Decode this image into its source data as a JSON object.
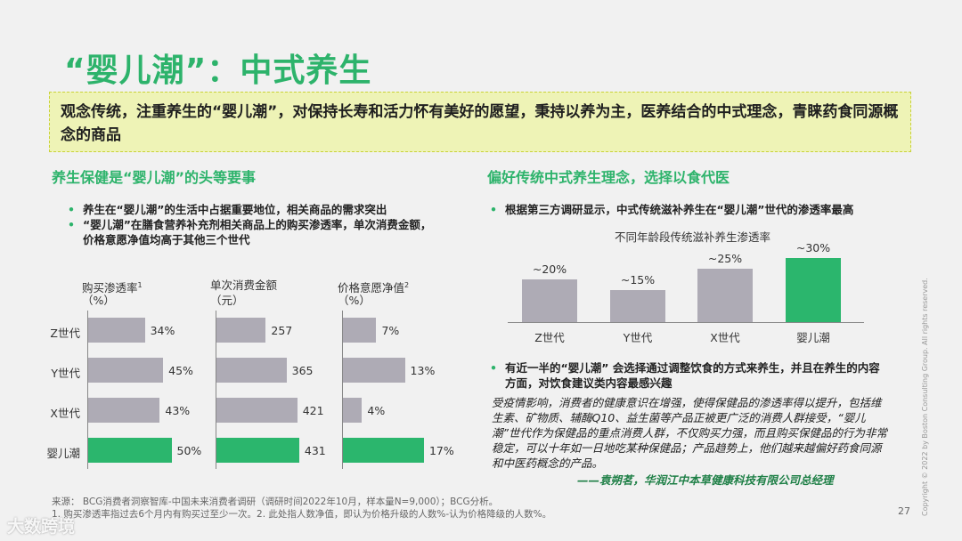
{
  "title": "“婴儿潮”：中式养生",
  "summary": "观念传统，注重养生的“婴儿潮”，对保持长寿和活力怀有美好的愿望，秉持以养为主，医养结合的中式理念，青睐药食同源概念的商品",
  "left": {
    "heading": "养生保健是“婴儿潮”的头等要事",
    "bullets": [
      "养生在“婴儿潮”的生活中占据重要地位，相关商品的需求突出",
      "“婴儿潮”在膳食营养补充剂相关商品上的购买渗透率，单次消费金额，价格意愿净值均高于其他三个世代"
    ]
  },
  "right": {
    "heading": "偏好传统中式养生理念，选择以食代医",
    "bullet1": "根据第三方调研显示，中式传统滋补养生在“婴儿潮”世代的渗透率最高",
    "bullet2": "有近一半的“婴儿潮” 会选择通过调整饮食的方式来养生，并且在养生的内容方面，对饮食建议类内容最感兴趣",
    "quote": "受疫情影响，消费者的健康意识在增强，使得保健品的渗透率得以提升，包括维生素、矿物质、辅酶Q10、益生菌等产品正被更广泛的消费人群接受，“婴儿潮”世代作为保健品的重点消费人群，不仅购买力强，而且购买保健品的行为非常稳定，可以十年如一日地吃某种保健品；产品趋势上，他们越来越偏好药食同源和中医药概念的产品。",
    "quote_author": "——袁朔茗，华润江中本草健康科技有限公司总经理"
  },
  "footnote": {
    "source": "来源： BCG消费者洞察智库-中国未来消费者调研（调研时间2022年10月，样本量N=9,000）；BCG分析。",
    "notes": "1. 购买渗透率指过去6个月内有购买过至少一次。2. 此处指人数净值，即认为价格升级的人数%-认为价格降级的人数%。"
  },
  "page_number": "27",
  "copyright": "Copyright © 2022 by Boston Consulting Group. All rights reserved.",
  "watermark": "大数跨境",
  "colors": {
    "accent": "#2db36b",
    "bar_gray": "#aeabb5",
    "highlight": "#2bb66d",
    "summary_bg": "#eef3b6"
  },
  "chart_data": [
    {
      "type": "bar",
      "orientation": "horizontal",
      "title": "购买渗透率",
      "title_sup": "1",
      "unit": "（%）",
      "categories": [
        "Z世代",
        "Y世代",
        "X世代",
        "婴儿潮"
      ],
      "values": [
        34,
        45,
        43,
        50
      ],
      "labels": [
        "34%",
        "45%",
        "43%",
        "50%"
      ],
      "highlight": "婴儿潮"
    },
    {
      "type": "bar",
      "orientation": "horizontal",
      "title": "单次消费金额",
      "title_sup": "",
      "unit": "（元）",
      "categories": [
        "Z世代",
        "Y世代",
        "X世代",
        "婴儿潮"
      ],
      "values": [
        257,
        365,
        421,
        431
      ],
      "labels": [
        "257",
        "365",
        "421",
        "431"
      ],
      "highlight": "婴儿潮"
    },
    {
      "type": "bar",
      "orientation": "horizontal",
      "title": "价格意愿净值",
      "title_sup": "2",
      "unit": "（%）",
      "categories": [
        "Z世代",
        "Y世代",
        "X世代",
        "婴儿潮"
      ],
      "values": [
        7,
        13,
        4,
        17
      ],
      "labels": [
        "7%",
        "13%",
        "4%",
        "17%"
      ],
      "highlight": "婴儿潮"
    },
    {
      "type": "bar",
      "orientation": "vertical",
      "title": "不同年龄段传统滋补养生渗透率",
      "categories": [
        "Z世代",
        "Y世代",
        "X世代",
        "婴儿潮"
      ],
      "values": [
        20,
        15,
        25,
        30
      ],
      "labels": [
        "~20%",
        "~15%",
        "~25%",
        "~30%"
      ],
      "highlight": "婴儿潮"
    }
  ]
}
